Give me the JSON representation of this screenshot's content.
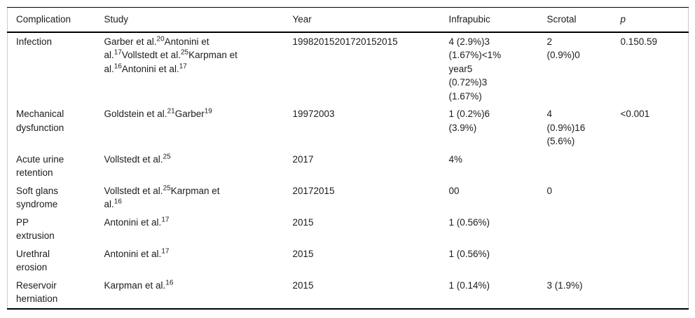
{
  "colors": {
    "background": "#ffffff",
    "text": "#1c1c1c",
    "horizontal_rule": "#000000",
    "side_border": "#cccccc"
  },
  "table": {
    "columns": [
      {
        "label": "Complication",
        "italic": false
      },
      {
        "label": "Study",
        "italic": false
      },
      {
        "label": "Year",
        "italic": false
      },
      {
        "label": "Infrapubic",
        "italic": false
      },
      {
        "label": "Scrotal",
        "italic": false
      },
      {
        "label": "p",
        "italic": true
      }
    ],
    "rows": [
      {
        "complication": "Infection",
        "study": [
          {
            "t": "Garber et al.",
            "s": "20"
          },
          {
            "t": "Antonini et\nal.",
            "s": "17"
          },
          {
            "t": "Vollstedt et al.",
            "s": "25"
          },
          {
            "t": "Karpman et\nal.",
            "s": "16"
          },
          {
            "t": "Antonini et al.",
            "s": "17"
          }
        ],
        "year": "19982015201720152015",
        "infrapubic": "4 (2.9%)3\n(1.67%)<1%\nyear5\n(0.72%)3\n(1.67%)",
        "scrotal": "2\n(0.9%)0",
        "p": "0.150.59"
      },
      {
        "complication": "Mechanical\ndysfunction",
        "study": [
          {
            "t": "Goldstein et al.",
            "s": "21"
          },
          {
            "t": "Garber",
            "s": "19"
          }
        ],
        "year": "19972003",
        "infrapubic": "1 (0.2%)6\n(3.9%)",
        "scrotal": "4\n(0.9%)16\n(5.6%)",
        "p": "<0.001"
      },
      {
        "complication": "Acute urine\nretention",
        "study": [
          {
            "t": "Vollstedt et al.",
            "s": "25"
          }
        ],
        "year": "2017",
        "infrapubic": "4%",
        "scrotal": "",
        "p": ""
      },
      {
        "complication": "Soft glans\nsyndrome",
        "study": [
          {
            "t": "Vollstedt et al.",
            "s": "25"
          },
          {
            "t": "Karpman et\nal.",
            "s": "16"
          }
        ],
        "year": "20172015",
        "infrapubic": "00",
        "scrotal": "0",
        "p": ""
      },
      {
        "complication": "PP\nextrusion",
        "study": [
          {
            "t": "Antonini et al.",
            "s": "17"
          }
        ],
        "year": "2015",
        "infrapubic": "1 (0.56%)",
        "scrotal": "",
        "p": ""
      },
      {
        "complication": "Urethral\nerosion",
        "study": [
          {
            "t": "Antonini et al.",
            "s": "17"
          }
        ],
        "year": "2015",
        "infrapubic": "1 (0.56%)",
        "scrotal": "",
        "p": ""
      },
      {
        "complication": "Reservoir\nherniation",
        "study": [
          {
            "t": "Karpman et al.",
            "s": "16"
          }
        ],
        "year": "2015",
        "infrapubic": "1 (0.14%)",
        "scrotal": "3 (1.9%)",
        "p": ""
      }
    ]
  }
}
